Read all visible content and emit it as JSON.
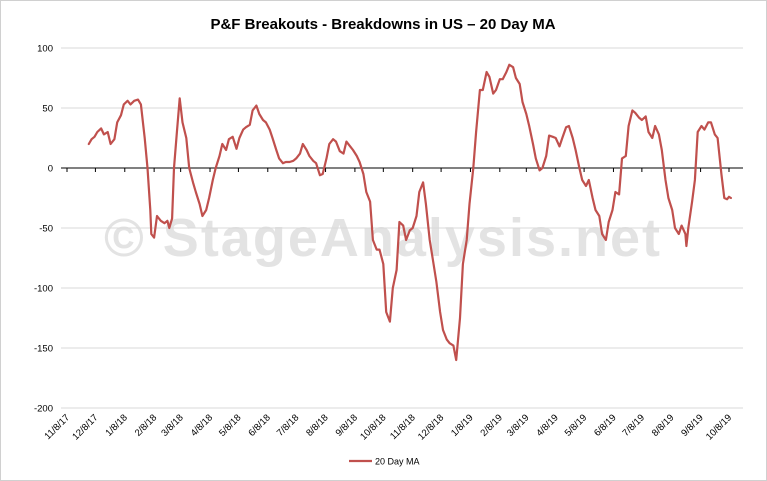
{
  "chart_data": {
    "type": "line",
    "title": "P&F Breakouts - Breakdowns in US – 20 Day MA",
    "watermark": "© StageAnalysis.net",
    "ylim": [
      -200,
      100
    ],
    "yticks": [
      100,
      50,
      0,
      -50,
      -100,
      -150,
      -200
    ],
    "gridlines": true,
    "legend_position": "bottom",
    "xlim": [
      "2017-11-08",
      "2019-10-08"
    ],
    "x_tick_labels": [
      {
        "date": "2017-11-08",
        "label": "11/8/17"
      },
      {
        "date": "2017-12-08",
        "label": "12/8/17"
      },
      {
        "date": "2018-01-08",
        "label": "1/8/18"
      },
      {
        "date": "2018-02-08",
        "label": "2/8/18"
      },
      {
        "date": "2018-03-08",
        "label": "3/8/18"
      },
      {
        "date": "2018-04-08",
        "label": "4/8/18"
      },
      {
        "date": "2018-05-08",
        "label": "5/8/18"
      },
      {
        "date": "2018-06-08",
        "label": "6/8/18"
      },
      {
        "date": "2018-07-08",
        "label": "7/8/18"
      },
      {
        "date": "2018-08-08",
        "label": "8/8/18"
      },
      {
        "date": "2018-09-08",
        "label": "9/8/18"
      },
      {
        "date": "2018-10-08",
        "label": "10/8/18"
      },
      {
        "date": "2018-11-08",
        "label": "11/8/18"
      },
      {
        "date": "2018-12-08",
        "label": "12/8/18"
      },
      {
        "date": "2019-01-08",
        "label": "1/8/19"
      },
      {
        "date": "2019-02-08",
        "label": "2/8/19"
      },
      {
        "date": "2019-03-08",
        "label": "3/8/19"
      },
      {
        "date": "2019-04-08",
        "label": "4/8/19"
      },
      {
        "date": "2019-05-08",
        "label": "5/8/19"
      },
      {
        "date": "2019-06-08",
        "label": "6/8/19"
      },
      {
        "date": "2019-07-08",
        "label": "7/8/19"
      },
      {
        "date": "2019-08-08",
        "label": "8/8/19"
      },
      {
        "date": "2019-09-08",
        "label": "9/8/19"
      },
      {
        "date": "2019-10-08",
        "label": "10/8/19"
      }
    ],
    "series": [
      {
        "name": "20 Day MA",
        "color": "#c0504d",
        "points": [
          [
            "2017-12-01",
            20
          ],
          [
            "2017-12-04",
            24
          ],
          [
            "2017-12-07",
            26
          ],
          [
            "2017-12-10",
            30
          ],
          [
            "2017-12-14",
            33
          ],
          [
            "2017-12-17",
            28
          ],
          [
            "2017-12-21",
            30
          ],
          [
            "2017-12-24",
            20
          ],
          [
            "2017-12-28",
            24
          ],
          [
            "2017-12-31",
            38
          ],
          [
            "2018-01-04",
            44
          ],
          [
            "2018-01-07",
            53
          ],
          [
            "2018-01-11",
            56
          ],
          [
            "2018-01-14",
            53
          ],
          [
            "2018-01-18",
            56
          ],
          [
            "2018-01-22",
            57
          ],
          [
            "2018-01-25",
            53
          ],
          [
            "2018-01-29",
            25
          ],
          [
            "2018-02-01",
            0
          ],
          [
            "2018-02-04",
            -35
          ],
          [
            "2018-02-05",
            -55
          ],
          [
            "2018-02-08",
            -58
          ],
          [
            "2018-02-11",
            -40
          ],
          [
            "2018-02-15",
            -44
          ],
          [
            "2018-02-19",
            -46
          ],
          [
            "2018-02-22",
            -44
          ],
          [
            "2018-02-24",
            -50
          ],
          [
            "2018-02-27",
            -42
          ],
          [
            "2018-03-01",
            0
          ],
          [
            "2018-03-04",
            30
          ],
          [
            "2018-03-07",
            58
          ],
          [
            "2018-03-10",
            38
          ],
          [
            "2018-03-14",
            25
          ],
          [
            "2018-03-17",
            0
          ],
          [
            "2018-03-21",
            -12
          ],
          [
            "2018-03-24",
            -20
          ],
          [
            "2018-03-28",
            -30
          ],
          [
            "2018-03-31",
            -40
          ],
          [
            "2018-04-04",
            -35
          ],
          [
            "2018-04-07",
            -25
          ],
          [
            "2018-04-11",
            -10
          ],
          [
            "2018-04-14",
            0
          ],
          [
            "2018-04-18",
            10
          ],
          [
            "2018-04-21",
            20
          ],
          [
            "2018-04-25",
            15
          ],
          [
            "2018-04-28",
            24
          ],
          [
            "2018-05-02",
            26
          ],
          [
            "2018-05-06",
            16
          ],
          [
            "2018-05-09",
            25
          ],
          [
            "2018-05-13",
            32
          ],
          [
            "2018-05-16",
            34
          ],
          [
            "2018-05-20",
            36
          ],
          [
            "2018-05-23",
            48
          ],
          [
            "2018-05-27",
            52
          ],
          [
            "2018-05-30",
            45
          ],
          [
            "2018-06-03",
            40
          ],
          [
            "2018-06-06",
            38
          ],
          [
            "2018-06-10",
            32
          ],
          [
            "2018-06-13",
            25
          ],
          [
            "2018-06-17",
            15
          ],
          [
            "2018-06-20",
            8
          ],
          [
            "2018-06-24",
            4
          ],
          [
            "2018-06-27",
            5
          ],
          [
            "2018-07-01",
            5
          ],
          [
            "2018-07-05",
            6
          ],
          [
            "2018-07-08",
            8
          ],
          [
            "2018-07-12",
            12
          ],
          [
            "2018-07-15",
            20
          ],
          [
            "2018-07-19",
            15
          ],
          [
            "2018-07-22",
            10
          ],
          [
            "2018-07-26",
            6
          ],
          [
            "2018-07-29",
            4
          ],
          [
            "2018-08-02",
            -6
          ],
          [
            "2018-08-05",
            -5
          ],
          [
            "2018-08-09",
            8
          ],
          [
            "2018-08-12",
            20
          ],
          [
            "2018-08-16",
            24
          ],
          [
            "2018-08-19",
            22
          ],
          [
            "2018-08-23",
            14
          ],
          [
            "2018-08-27",
            12
          ],
          [
            "2018-08-30",
            22
          ],
          [
            "2018-09-03",
            18
          ],
          [
            "2018-09-06",
            15
          ],
          [
            "2018-09-10",
            10
          ],
          [
            "2018-09-13",
            5
          ],
          [
            "2018-09-17",
            -5
          ],
          [
            "2018-09-20",
            -20
          ],
          [
            "2018-09-24",
            -28
          ],
          [
            "2018-09-27",
            -60
          ],
          [
            "2018-10-01",
            -68
          ],
          [
            "2018-10-04",
            -68
          ],
          [
            "2018-10-08",
            -80
          ],
          [
            "2018-10-11",
            -120
          ],
          [
            "2018-10-15",
            -128
          ],
          [
            "2018-10-18",
            -100
          ],
          [
            "2018-10-22",
            -85
          ],
          [
            "2018-10-25",
            -45
          ],
          [
            "2018-10-29",
            -48
          ],
          [
            "2018-11-01",
            -60
          ],
          [
            "2018-11-05",
            -52
          ],
          [
            "2018-11-08",
            -50
          ],
          [
            "2018-11-12",
            -40
          ],
          [
            "2018-11-15",
            -20
          ],
          [
            "2018-11-19",
            -12
          ],
          [
            "2018-11-22",
            -30
          ],
          [
            "2018-11-26",
            -60
          ],
          [
            "2018-11-29",
            -75
          ],
          [
            "2018-12-03",
            -95
          ],
          [
            "2018-12-07",
            -120
          ],
          [
            "2018-12-10",
            -135
          ],
          [
            "2018-12-14",
            -143
          ],
          [
            "2018-12-17",
            -146
          ],
          [
            "2018-12-21",
            -148
          ],
          [
            "2018-12-24",
            -160
          ],
          [
            "2018-12-28",
            -125
          ],
          [
            "2018-12-31",
            -80
          ],
          [
            "2019-01-04",
            -60
          ],
          [
            "2019-01-07",
            -30
          ],
          [
            "2019-01-11",
            0
          ],
          [
            "2019-01-14",
            30
          ],
          [
            "2019-01-18",
            65
          ],
          [
            "2019-01-21",
            65
          ],
          [
            "2019-01-25",
            80
          ],
          [
            "2019-01-28",
            76
          ],
          [
            "2019-02-01",
            62
          ],
          [
            "2019-02-04",
            65
          ],
          [
            "2019-02-08",
            74
          ],
          [
            "2019-02-11",
            74
          ],
          [
            "2019-02-15",
            80
          ],
          [
            "2019-02-18",
            86
          ],
          [
            "2019-02-22",
            84
          ],
          [
            "2019-02-25",
            75
          ],
          [
            "2019-03-01",
            70
          ],
          [
            "2019-03-04",
            55
          ],
          [
            "2019-03-08",
            45
          ],
          [
            "2019-03-11",
            35
          ],
          [
            "2019-03-15",
            20
          ],
          [
            "2019-03-18",
            8
          ],
          [
            "2019-03-22",
            -2
          ],
          [
            "2019-03-25",
            0
          ],
          [
            "2019-03-29",
            10
          ],
          [
            "2019-04-01",
            27
          ],
          [
            "2019-04-05",
            26
          ],
          [
            "2019-04-08",
            25
          ],
          [
            "2019-04-12",
            18
          ],
          [
            "2019-04-15",
            25
          ],
          [
            "2019-04-19",
            34
          ],
          [
            "2019-04-22",
            35
          ],
          [
            "2019-04-26",
            25
          ],
          [
            "2019-04-29",
            15
          ],
          [
            "2019-05-03",
            0
          ],
          [
            "2019-05-06",
            -10
          ],
          [
            "2019-05-10",
            -15
          ],
          [
            "2019-05-13",
            -10
          ],
          [
            "2019-05-17",
            -25
          ],
          [
            "2019-05-20",
            -35
          ],
          [
            "2019-05-24",
            -40
          ],
          [
            "2019-05-27",
            -55
          ],
          [
            "2019-05-31",
            -60
          ],
          [
            "2019-06-03",
            -45
          ],
          [
            "2019-06-07",
            -35
          ],
          [
            "2019-06-10",
            -20
          ],
          [
            "2019-06-14",
            -22
          ],
          [
            "2019-06-17",
            8
          ],
          [
            "2019-06-21",
            10
          ],
          [
            "2019-06-24",
            35
          ],
          [
            "2019-06-28",
            48
          ],
          [
            "2019-07-01",
            46
          ],
          [
            "2019-07-05",
            42
          ],
          [
            "2019-07-08",
            40
          ],
          [
            "2019-07-12",
            43
          ],
          [
            "2019-07-15",
            30
          ],
          [
            "2019-07-19",
            25
          ],
          [
            "2019-07-22",
            35
          ],
          [
            "2019-07-26",
            28
          ],
          [
            "2019-07-29",
            15
          ],
          [
            "2019-08-02",
            -10
          ],
          [
            "2019-08-05",
            -25
          ],
          [
            "2019-08-09",
            -35
          ],
          [
            "2019-08-12",
            -50
          ],
          [
            "2019-08-16",
            -55
          ],
          [
            "2019-08-19",
            -48
          ],
          [
            "2019-08-23",
            -55
          ],
          [
            "2019-08-24",
            -65
          ],
          [
            "2019-08-26",
            -50
          ],
          [
            "2019-08-30",
            -28
          ],
          [
            "2019-09-02",
            -10
          ],
          [
            "2019-09-05",
            30
          ],
          [
            "2019-09-09",
            35
          ],
          [
            "2019-09-12",
            32
          ],
          [
            "2019-09-16",
            38
          ],
          [
            "2019-09-19",
            38
          ],
          [
            "2019-09-23",
            28
          ],
          [
            "2019-09-26",
            25
          ],
          [
            "2019-09-30",
            -5
          ],
          [
            "2019-10-03",
            -25
          ],
          [
            "2019-10-06",
            -26
          ],
          [
            "2019-10-08",
            -24
          ],
          [
            "2019-10-10",
            -25
          ]
        ]
      }
    ]
  }
}
